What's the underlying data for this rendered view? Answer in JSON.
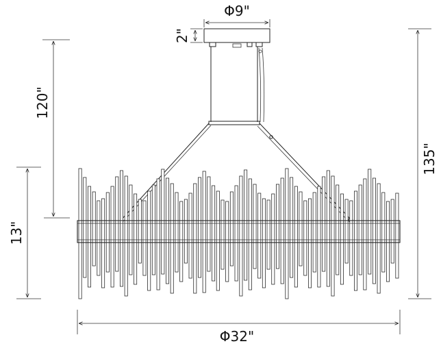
{
  "dimensions": {
    "canopy_diameter": "Φ9\"",
    "canopy_height": "2\"",
    "overall_height": "135\"",
    "drop_height": "120\"",
    "body_height": "13\"",
    "body_diameter": "Φ32\""
  },
  "colors": {
    "line": "#222222",
    "background": "#ffffff"
  }
}
